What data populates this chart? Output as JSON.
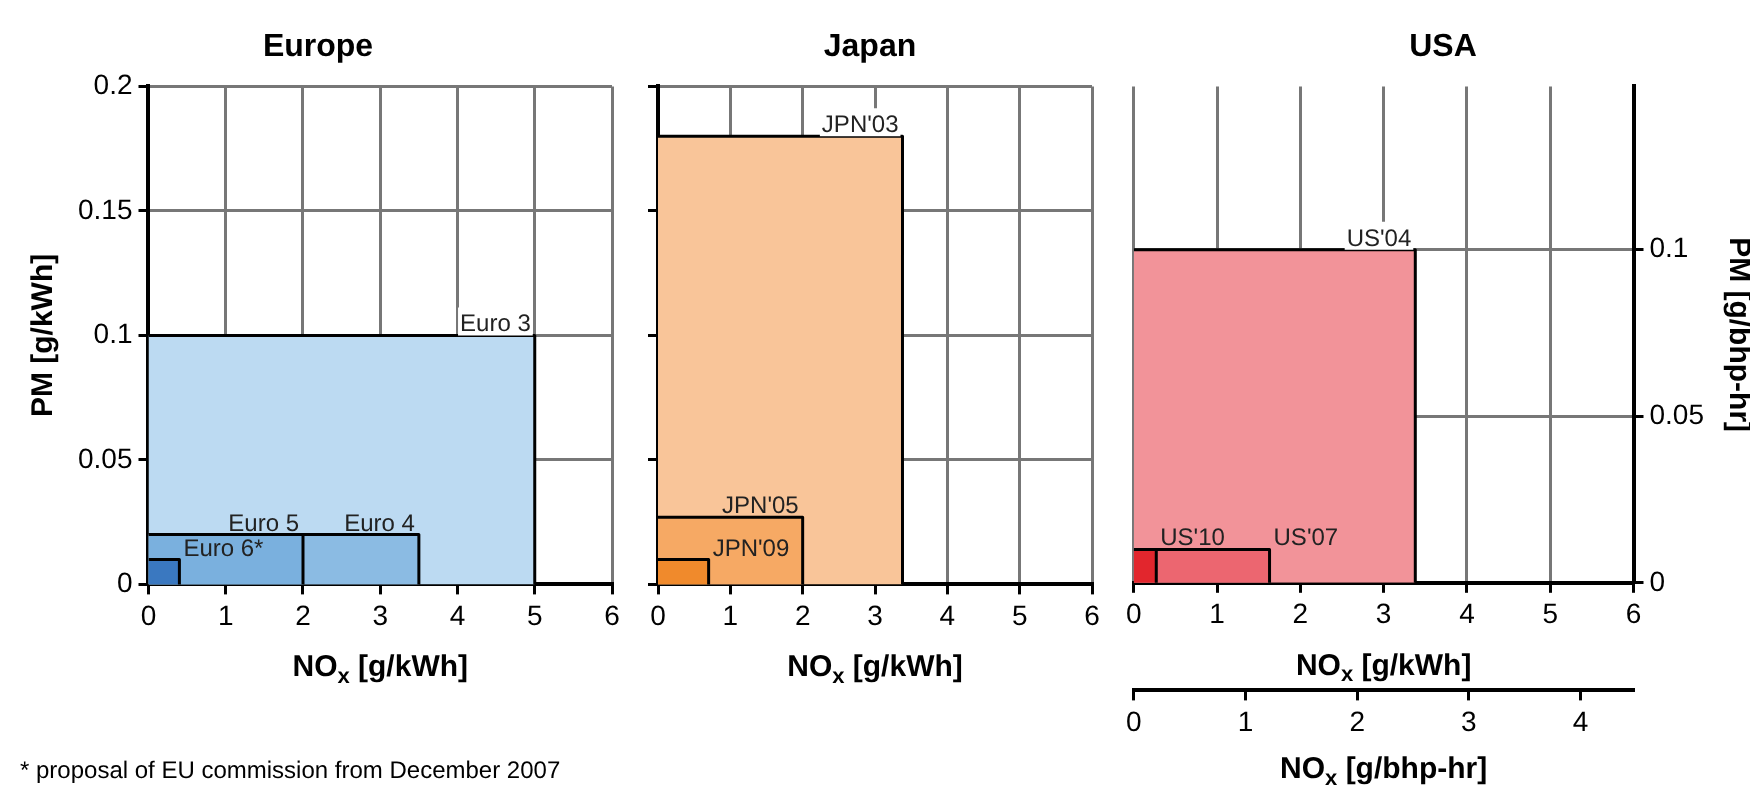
{
  "chart_data": [
    {
      "type": "area",
      "title": "Europe",
      "xlabel": "NO$_{x}$ [g/kWh]",
      "ylabel": "PM [g/kWh]",
      "xlim": [
        0,
        6
      ],
      "xticks": [
        0,
        1,
        2,
        3,
        4,
        5,
        6
      ],
      "ylim": [
        0,
        0.2
      ],
      "yticks": [
        0,
        0.05,
        0.1,
        0.15,
        0.2
      ],
      "grid": true,
      "marker": "none",
      "annotations": [
        "* proposal of EU commission from December 2007"
      ],
      "series": [
        {
          "name": "Euro 3",
          "color": "#bcdaf2",
          "x": [
            0,
            5,
            5
          ],
          "values": [
            0.1,
            0.1,
            0
          ]
        },
        {
          "name": "Euro 4",
          "color": "#8bbbe3",
          "x": [
            0,
            3.5,
            3.5
          ],
          "values": [
            0.02,
            0.02,
            0
          ]
        },
        {
          "name": "Euro 5",
          "color": "#7ab0de",
          "x": [
            0,
            2,
            2
          ],
          "values": [
            0.02,
            0.02,
            0
          ]
        },
        {
          "name": "Euro 6*",
          "color": "#3a78c0",
          "x": [
            0,
            0.4,
            0.4
          ],
          "values": [
            0.01,
            0.01,
            0
          ]
        }
      ]
    },
    {
      "type": "area",
      "title": "Japan",
      "xlabel": "NO$_{x}$ [g/kWh]",
      "xlim": [
        0,
        6
      ],
      "xticks": [
        0,
        1,
        2,
        3,
        4,
        5,
        6
      ],
      "ylim": [
        0,
        0.2
      ],
      "yticks": [
        0,
        0.05,
        0.1,
        0.15,
        0.2
      ],
      "grid": true,
      "marker": "none",
      "tick_labels": "x",
      "series": [
        {
          "name": "JPN'03",
          "color": "#f9c599",
          "x": [
            0,
            3.38,
            3.38
          ],
          "values": [
            0.18,
            0.18,
            0
          ]
        },
        {
          "name": "JPN'05",
          "color": "#f6a964",
          "x": [
            0,
            2,
            2
          ],
          "values": [
            0.027,
            0.027,
            0
          ]
        },
        {
          "name": "JPN'09",
          "color": "#f08a2c",
          "x": [
            0,
            0.7,
            0.7
          ],
          "values": [
            0.01,
            0.01,
            0
          ]
        }
      ]
    },
    {
      "type": "area",
      "title": "USA",
      "xlabel": "NO$_{x}$ [g/kWh]",
      "y2label": "PM [g/bhp-hr]",
      "x2label": "NO$_{x}$ [g/bhp-hr]",
      "xlim": [
        0,
        6
      ],
      "xticks": [
        0,
        1,
        2,
        3,
        4,
        5,
        6
      ],
      "y2lim": [
        0,
        0.149
      ],
      "y2ticks": [
        0,
        0.05,
        0.1
      ],
      "x2lim": [
        0,
        4.474
      ],
      "x2ticks": [
        0,
        1,
        2,
        3,
        4
      ],
      "grid": true,
      "marker": "none",
      "series": [
        {
          "name": "US'04",
          "color": "#f29399",
          "axis": "y2",
          "x": [
            0,
            3.38,
            3.38
          ],
          "values": [
            0.1,
            0.1,
            0
          ]
        },
        {
          "name": "US'07",
          "color": "#ec6670",
          "axis": "y2",
          "x": [
            0,
            1.63,
            1.63
          ],
          "values": [
            0.01,
            0.01,
            0
          ]
        },
        {
          "name": "US'10",
          "color": "#e2262d",
          "axis": "y2",
          "x": [
            0,
            0.27,
            0.27
          ],
          "values": [
            0.01,
            0.01,
            0
          ]
        }
      ]
    }
  ]
}
